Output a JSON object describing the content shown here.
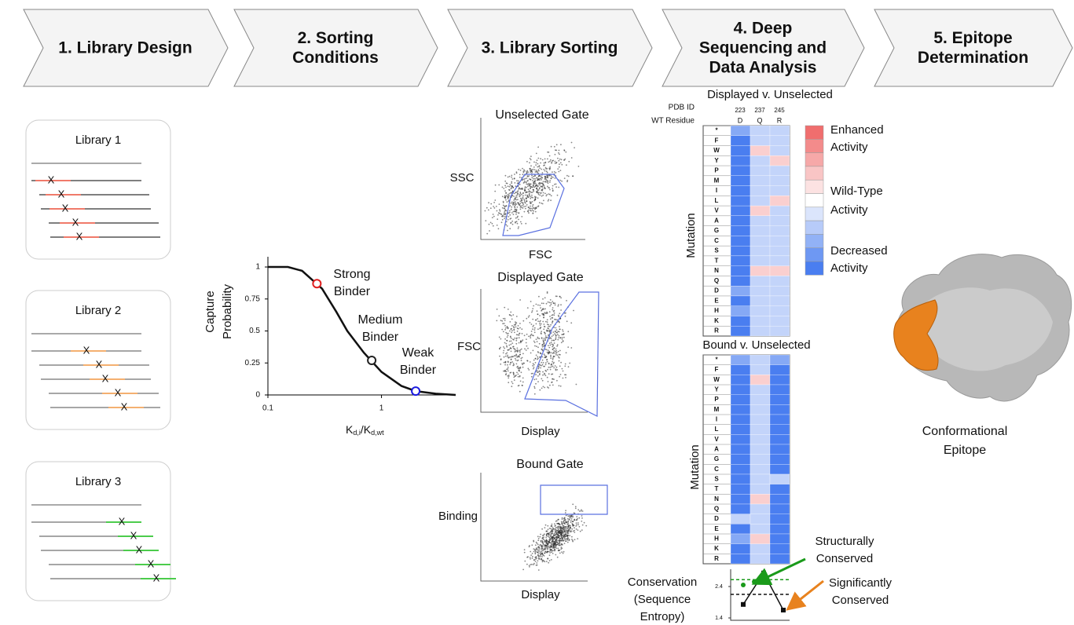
{
  "header": {
    "steps": [
      [
        "1. Library Design"
      ],
      [
        "2. Sorting",
        "Conditions"
      ],
      [
        "3. Library Sorting"
      ],
      [
        "4. Deep",
        "Sequencing and",
        "Data Analysis"
      ],
      [
        "5. Epitope",
        "Determination"
      ]
    ]
  },
  "libraries": [
    {
      "title": "Library 1",
      "marker": "X"
    },
    {
      "title": "Library 2",
      "marker": "X"
    },
    {
      "title": "Library 3",
      "marker": "X"
    }
  ],
  "capture_chart": {
    "type": "line",
    "y_label": [
      "Capture",
      "Probability"
    ],
    "x_label": [
      "K",
      "d,i",
      "/K",
      "d,wt"
    ],
    "log_x": true,
    "xlim": [
      0.1,
      4.5
    ],
    "xticks": [
      0.1,
      1
    ],
    "ylim": [
      0,
      1.08
    ],
    "yticks": [
      0,
      0.25,
      0.5,
      0.75,
      1
    ],
    "x": [
      0.1,
      0.15,
      0.2,
      0.3,
      0.4,
      0.5,
      0.7,
      1,
      1.5,
      2,
      3,
      4.5
    ],
    "y": [
      1,
      1,
      0.97,
      0.83,
      0.65,
      0.5,
      0.33,
      0.18,
      0.07,
      0.03,
      0.01,
      0
    ],
    "points": [
      {
        "label": [
          "Strong",
          "Binder"
        ],
        "x": 0.27,
        "y": 0.87,
        "color": "#e02020"
      },
      {
        "label": [
          "Medium",
          "Binder"
        ],
        "x": 0.82,
        "y": 0.27,
        "color": "#222222"
      },
      {
        "label": [
          "Weak",
          "Binder"
        ],
        "x": 2,
        "y": 0.03,
        "color": "#1a1adf"
      }
    ]
  },
  "sorting": {
    "panels": [
      {
        "title": "Unselected Gate",
        "y_label": "SSC",
        "x_label": "FSC"
      },
      {
        "title": "Displayed Gate",
        "y_label": "FSC",
        "x_label": "Display"
      },
      {
        "title": "Bound Gate",
        "y_label": "Binding",
        "x_label": "Display"
      }
    ]
  },
  "analysis": {
    "pdb_label": "PDB ID",
    "wt_label": "WT Residue",
    "pdb_ids": [
      "223",
      "237",
      "245"
    ],
    "wt": [
      "D",
      "Q",
      "R"
    ],
    "rows": [
      "*",
      "F",
      "W",
      "Y",
      "P",
      "M",
      "I",
      "L",
      "V",
      "A",
      "G",
      "C",
      "S",
      "T",
      "N",
      "Q",
      "D",
      "E",
      "H",
      "K",
      "R"
    ],
    "heatmaps": [
      {
        "title": "Displayed v. Unselected",
        "y_label": "Mutation",
        "values": [
          [
            -2,
            -1,
            -1
          ],
          [
            -3,
            -1,
            -1
          ],
          [
            -3,
            1,
            -1
          ],
          [
            -3,
            -1,
            1
          ],
          [
            -3,
            -1,
            -1
          ],
          [
            -3,
            -1,
            -1
          ],
          [
            -3,
            -1,
            -1
          ],
          [
            -3,
            -1,
            1
          ],
          [
            -3,
            1,
            -1
          ],
          [
            -3,
            -1,
            -1
          ],
          [
            -3,
            -1,
            -1
          ],
          [
            -3,
            -1,
            -1
          ],
          [
            -3,
            -1,
            -1
          ],
          [
            -3,
            -1,
            -1
          ],
          [
            -3,
            1,
            1
          ],
          [
            -3,
            -1,
            -1
          ],
          [
            -2,
            -1,
            -1
          ],
          [
            -3,
            -1,
            -1
          ],
          [
            -2,
            -1,
            -1
          ],
          [
            -3,
            -1,
            -1
          ],
          [
            -3,
            -1,
            -1
          ]
        ]
      },
      {
        "title": "Bound v. Unselected",
        "y_label": "Mutation",
        "values": [
          [
            -2,
            -1,
            -2
          ],
          [
            -3,
            -1,
            -3
          ],
          [
            -3,
            1,
            -3
          ],
          [
            -3,
            -1,
            -3
          ],
          [
            -3,
            -1,
            -3
          ],
          [
            -3,
            -1,
            -3
          ],
          [
            -3,
            -1,
            -3
          ],
          [
            -3,
            -1,
            -3
          ],
          [
            -3,
            -1,
            -3
          ],
          [
            -3,
            -1,
            -3
          ],
          [
            -3,
            -1,
            -3
          ],
          [
            -3,
            -1,
            -3
          ],
          [
            -3,
            -1,
            -1
          ],
          [
            -3,
            -1,
            -3
          ],
          [
            -3,
            1,
            -3
          ],
          [
            -3,
            -1,
            -3
          ],
          [
            -1,
            -1,
            -3
          ],
          [
            -3,
            -1,
            -3
          ],
          [
            -2,
            1,
            -3
          ],
          [
            -3,
            -1,
            -3
          ],
          [
            -3,
            -1,
            -3
          ]
        ]
      }
    ],
    "legend": {
      "enhanced": [
        "Enhanced",
        "Activity"
      ],
      "wild_type": [
        "Wild-Type",
        "Activity"
      ],
      "decreased": [
        "Decreased",
        "Activity"
      ]
    },
    "conservation": {
      "label": [
        "Conservation",
        "(Sequence",
        "Entropy)"
      ],
      "ylim": [
        1.4,
        2.95
      ],
      "yticks": [
        1.4,
        2.4
      ],
      "values": [
        1.83,
        2.83,
        1.65
      ],
      "green_values": [
        2.45,
        2.55
      ],
      "thresholds": [
        2.62,
        2.15
      ],
      "structural": [
        "Structurally",
        "Conserved"
      ],
      "significant": [
        "Significantly",
        "Conserved"
      ]
    }
  },
  "epitope": {
    "label": [
      "Conformational",
      "Epitope"
    ]
  }
}
